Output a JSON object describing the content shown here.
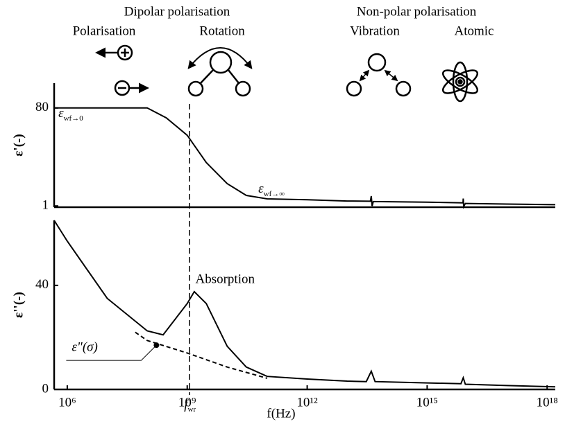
{
  "header": {
    "dipolar": "Dipolar polarisation",
    "polarisation": "Polarisation",
    "rotation": "Rotation",
    "nonpolar": "Non-polar polarisation",
    "vibration": "Vibration",
    "atomic": "Atomic"
  },
  "marker": {
    "x": 1150000000,
    "symbol": "f",
    "subscript": "wr"
  },
  "chart_data": [
    {
      "type": "line",
      "ylabel": "ε'(-)",
      "xlog": true,
      "xlim": [
        470000,
        1.6e+18
      ],
      "ylim": [
        0,
        100
      ],
      "yticks": [
        1,
        80
      ],
      "series": [
        {
          "color": "#000000",
          "style": "solid",
          "x": [
            470000,
            1000000,
            10000000,
            100000000,
            300000000,
            1000000000,
            3000000000,
            10000000000,
            30000000000,
            100000000000,
            1000000000000,
            10000000000000,
            38000000000000,
            40000000000000,
            42000000000000,
            45000000000000,
            1000000000000000,
            7900000000000000,
            8000000000000000,
            8200000000000000,
            9000000000000000,
            100000000000000000,
            1.6e+18
          ],
          "values": [
            80,
            80,
            80,
            80,
            72,
            58,
            36,
            19,
            9.5,
            6.7,
            6,
            5,
            4.8,
            9,
            1,
            4.5,
            4,
            3.5,
            7,
            0.5,
            3,
            2.5,
            2
          ]
        }
      ],
      "annotations": [
        {
          "symbol": "ε",
          "subscript": "wf→0",
          "x": 600000,
          "y": 75
        },
        {
          "symbol": "ε",
          "subscript": "wf→∞",
          "x": 60000000000,
          "y": 14
        }
      ]
    },
    {
      "type": "line",
      "ylabel": "ε''(-)",
      "xlog": true,
      "xlabel": "f(Hz)",
      "xlim": [
        470000,
        1.6e+18
      ],
      "ylim": [
        0,
        65
      ],
      "xticks": [
        {
          "value": 1000000,
          "label": "10⁶"
        },
        {
          "value": 1000000000,
          "label": "10⁹"
        },
        {
          "value": 1000000000000,
          "label": "10¹²"
        },
        {
          "value": 1000000000000000,
          "label": "10¹⁵"
        },
        {
          "value": 1000000000000000000,
          "label": "10¹⁸"
        }
      ],
      "yticks": [
        0,
        40
      ],
      "series": [
        {
          "color": "#000000",
          "style": "solid",
          "x": [
            470000,
            1000000,
            10000000,
            100000000,
            250000000,
            1000000000,
            1500000000,
            3000000000,
            10000000000,
            30000000000,
            100000000000,
            1000000000000,
            10000000000000,
            30000000000000,
            40000000000000,
            50000000000000,
            1000000000000000,
            7000000000000000,
            8000000000000000,
            9000000000000000,
            100000000000000000,
            1.6e+18
          ],
          "values": [
            65,
            57,
            35,
            22.5,
            21,
            33,
            37.6,
            33,
            16.6,
            8.6,
            5,
            4,
            3.2,
            3,
            7,
            3,
            2.5,
            2.2,
            4.5,
            2,
            1.5,
            1
          ]
        },
        {
          "color": "#000000",
          "style": "dashed",
          "x": [
            50000000,
            100000000,
            1000000000,
            10000000000,
            100000000000
          ],
          "values": [
            22,
            18.8,
            14,
            8.6,
            4.3
          ]
        }
      ],
      "annotations": [
        {
          "text": "Absorption",
          "x": 1600000000,
          "y": 42
        },
        {
          "text": "ε\"(σ)",
          "x": 170000000,
          "y": 17
        }
      ]
    }
  ]
}
